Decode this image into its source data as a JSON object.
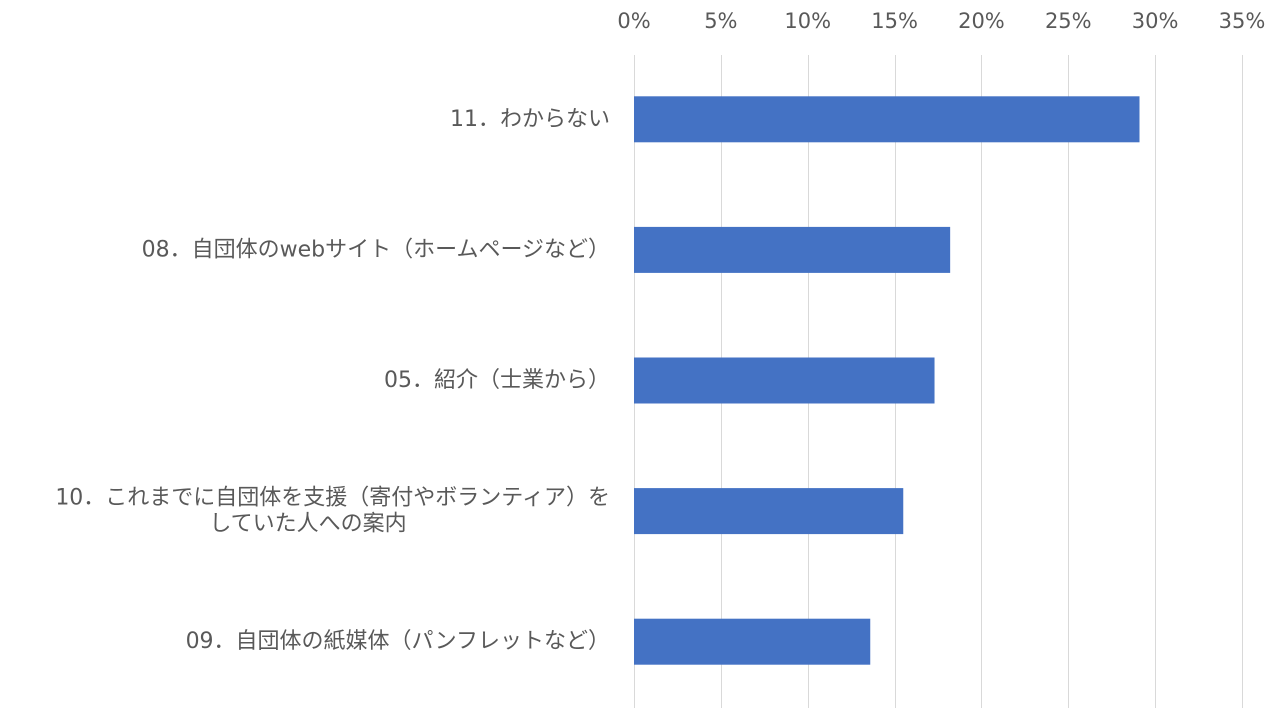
{
  "chart_data": {
    "type": "bar",
    "orientation": "horizontal",
    "categories": [
      "11．わからない",
      "08．自団体のwebサイト（ホームページなど）",
      "05．紹介（士業から）",
      "10．これまでに自団体を支援（寄付やボランティア）をしていた人への案内",
      "09．自団体の紙媒体（パンフレットなど）"
    ],
    "category_lines": [
      [
        "11．わからない"
      ],
      [
        "08．自団体のwebサイト（ホームページなど）"
      ],
      [
        "05．紹介（士業から）"
      ],
      [
        "10．これまでに自団体を支援（寄付やボランティア）を",
        "していた人への案内"
      ],
      [
        "09．自団体の紙媒体（パンフレットなど）"
      ]
    ],
    "values": [
      29.1,
      18.2,
      17.3,
      15.5,
      13.6
    ],
    "xlim": [
      0,
      35
    ],
    "x_ticks": [
      0,
      5,
      10,
      15,
      20,
      25,
      30,
      35
    ],
    "x_tick_labels": [
      "0%",
      "5%",
      "10%",
      "15%",
      "20%",
      "25%",
      "30%",
      "35%"
    ],
    "x_axis_position": "top",
    "grid": true,
    "bar_color": "#4472C4",
    "grid_color": "#D9D9D9",
    "text_color": "#595959",
    "title": "",
    "xlabel": "",
    "ylabel": ""
  }
}
